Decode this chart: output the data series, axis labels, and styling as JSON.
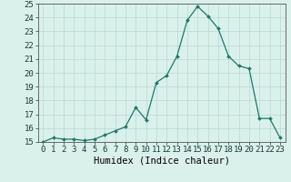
{
  "x": [
    0,
    1,
    2,
    3,
    4,
    5,
    6,
    7,
    8,
    9,
    10,
    11,
    12,
    13,
    14,
    15,
    16,
    17,
    18,
    19,
    20,
    21,
    22,
    23
  ],
  "y": [
    15.0,
    15.3,
    15.2,
    15.2,
    15.1,
    15.2,
    15.5,
    15.8,
    16.1,
    17.5,
    16.6,
    19.3,
    19.8,
    21.2,
    23.8,
    24.8,
    24.1,
    23.2,
    21.2,
    20.5,
    20.3,
    16.7,
    16.7,
    15.3
  ],
  "line_color": "#1a7a6a",
  "marker": "D",
  "marker_size": 2.0,
  "bg_color": "#daf0eb",
  "grid_color": "#b8d8d2",
  "xlabel": "Humidex (Indice chaleur)",
  "xlim": [
    -0.5,
    23.5
  ],
  "ylim": [
    15,
    25
  ],
  "yticks": [
    15,
    16,
    17,
    18,
    19,
    20,
    21,
    22,
    23,
    24,
    25
  ],
  "xticks": [
    0,
    1,
    2,
    3,
    4,
    5,
    6,
    7,
    8,
    9,
    10,
    11,
    12,
    13,
    14,
    15,
    16,
    17,
    18,
    19,
    20,
    21,
    22,
    23
  ],
  "xtick_labels": [
    "0",
    "1",
    "2",
    "3",
    "4",
    "5",
    "6",
    "7",
    "8",
    "9",
    "10",
    "11",
    "12",
    "13",
    "14",
    "15",
    "16",
    "17",
    "18",
    "19",
    "20",
    "21",
    "22",
    "23"
  ],
  "xlabel_fontsize": 7.5,
  "tick_fontsize": 6.5
}
